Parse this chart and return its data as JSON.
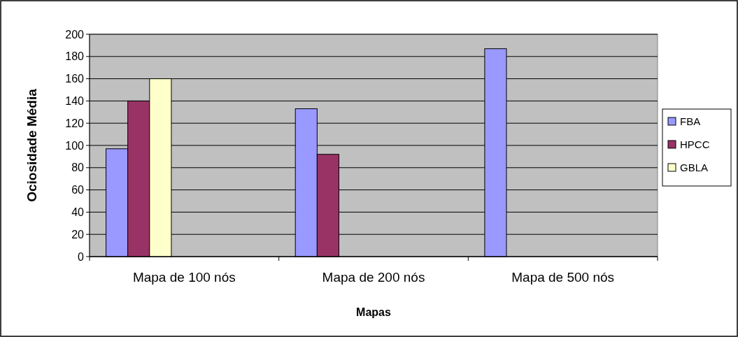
{
  "chart_data": {
    "type": "bar",
    "xlabel": "Mapas",
    "ylabel": "Ociosidade Média",
    "categories": [
      "Mapa de 100 nós",
      "Mapa de 200 nós",
      "Mapa de 500 nós"
    ],
    "series": [
      {
        "name": "FBA",
        "color": "#9999ff",
        "values": [
          97,
          133,
          187
        ]
      },
      {
        "name": "HPCC",
        "color": "#993366",
        "values": [
          140,
          92,
          null
        ]
      },
      {
        "name": "GBLA",
        "color": "#ffffcc",
        "values": [
          160,
          null,
          null
        ]
      }
    ],
    "ylim": [
      0,
      200
    ],
    "yticks": [
      0,
      20,
      40,
      60,
      80,
      100,
      120,
      140,
      160,
      180,
      200
    ],
    "grid": "y",
    "legend": "right"
  }
}
